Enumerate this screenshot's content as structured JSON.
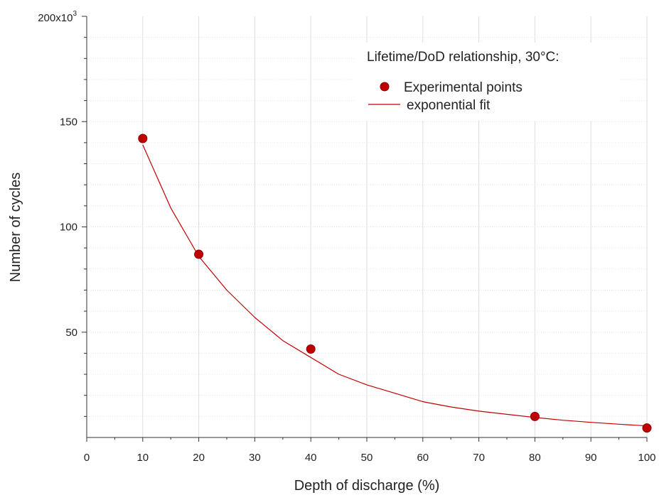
{
  "chart_data": {
    "type": "scatter",
    "title": "",
    "xlabel": "Depth of discharge (%)",
    "ylabel": "Number of cycles",
    "xlim": [
      0,
      100
    ],
    "ylim": [
      0,
      200000
    ],
    "x_ticks": [
      0,
      10,
      20,
      30,
      40,
      50,
      60,
      70,
      80,
      90,
      100
    ],
    "x_tick_labels": [
      "0",
      "10",
      "20",
      "30",
      "40",
      "50",
      "60",
      "70",
      "80",
      "90",
      "100"
    ],
    "y_ticks": [
      50000,
      100000,
      150000
    ],
    "y_tick_labels": [
      "50",
      "100",
      "150"
    ],
    "y_top_label": "200x10",
    "y_top_label_exponent": "3",
    "annotation": "Lifetime/DoD relationship, 30°C:",
    "legend_position": "top-right",
    "grid": true,
    "series": [
      {
        "name": "Experimental points",
        "kind": "points",
        "color": "#c00000",
        "x": [
          10,
          20,
          40,
          80,
          100
        ],
        "y": [
          142000,
          87000,
          42000,
          10000,
          4500
        ]
      },
      {
        "name": "exponential fit",
        "kind": "line",
        "color": "#c00000",
        "x": [
          10,
          15,
          20,
          25,
          30,
          35,
          40,
          45,
          50,
          55,
          60,
          65,
          70,
          75,
          80,
          85,
          90,
          95,
          100
        ],
        "y": [
          139000,
          109000,
          86000,
          70000,
          57000,
          46000,
          38000,
          30000,
          25000,
          21000,
          17000,
          14500,
          12500,
          11000,
          9500,
          8200,
          7200,
          6300,
          5500
        ]
      }
    ]
  }
}
